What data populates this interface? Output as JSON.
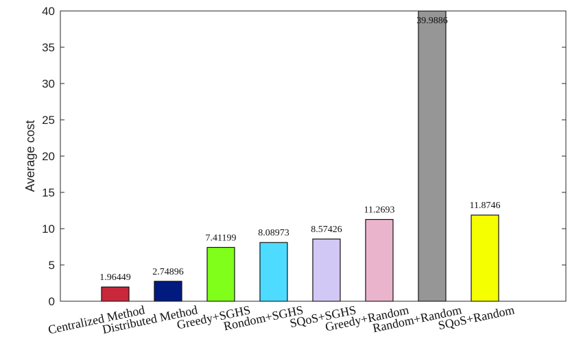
{
  "chart_data": {
    "type": "bar",
    "ylabel": "Average cost",
    "xlabel": "",
    "title": "",
    "ylim": [
      0,
      40
    ],
    "yticks": [
      0,
      5,
      10,
      15,
      20,
      25,
      30,
      35,
      40
    ],
    "grid": false,
    "categories": [
      "Centralized Method",
      "Distributed Method",
      "Greedy+SGHS",
      "Rondom+SGHS",
      "SQoS+SGHS",
      "Greedy+Random",
      "Random+Random",
      "SQoS+Random"
    ],
    "values": [
      1.96449,
      2.74896,
      7.41199,
      8.08973,
      8.57426,
      11.2693,
      39.9886,
      11.8746
    ],
    "value_labels": [
      "1.96449",
      "2.74896",
      "7.41199",
      "8.08973",
      "8.57426",
      "11.2693",
      "39.9886",
      "11.8746"
    ],
    "colors": [
      "#c8283a",
      "#001a80",
      "#7fff1a",
      "#4ddcff",
      "#d2c8f5",
      "#ebb4cd",
      "#969696",
      "#f5ff00"
    ]
  }
}
